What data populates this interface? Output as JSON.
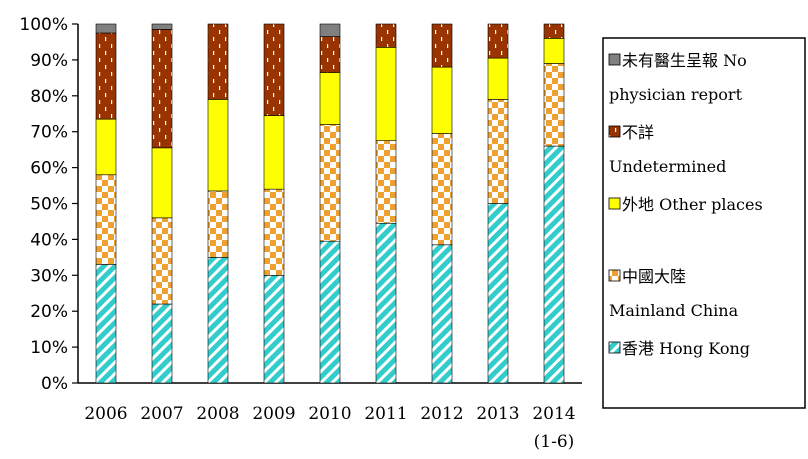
{
  "chart_data": {
    "type": "bar",
    "stacked": true,
    "percent": true,
    "categories": [
      "2006",
      "2007",
      "2008",
      "2009",
      "2010",
      "2011",
      "2012",
      "2013",
      "2014"
    ],
    "category_sublabels": [
      "",
      "",
      "",
      "",
      "",
      "",
      "",
      "",
      "(1-6)"
    ],
    "yticks": [
      "0%",
      "10%",
      "20%",
      "30%",
      "40%",
      "50%",
      "60%",
      "70%",
      "80%",
      "90%",
      "100%"
    ],
    "ylim": [
      0,
      100
    ],
    "grid": false,
    "legend_position": "right",
    "series": [
      {
        "name": "香港 Hong Kong",
        "name_lines": [
          "香港 Hong Kong"
        ],
        "color": "#33cccc",
        "pattern": "diagonal-stripes",
        "values": [
          33,
          22,
          35,
          30,
          39.5,
          44.5,
          38.5,
          50,
          66
        ]
      },
      {
        "name": "中國大陸 Mainland China",
        "name_lines": [
          "中國大陸",
          "Mainland China"
        ],
        "color": "#f0a030",
        "pattern": "checkerboard",
        "values": [
          25,
          24,
          18.5,
          24,
          32.5,
          23,
          31,
          29,
          23
        ]
      },
      {
        "name": "外地 Other places",
        "name_lines": [
          "外地 Other places"
        ],
        "color": "#ffff00",
        "pattern": "solid",
        "values": [
          15.5,
          19.5,
          25.5,
          20.5,
          14.5,
          26,
          18.5,
          11.5,
          7
        ]
      },
      {
        "name": "不詳 Undetermined",
        "name_lines": [
          "不詳",
          "Undetermined"
        ],
        "color": "#993300",
        "pattern": "dashes",
        "values": [
          24,
          33,
          21,
          25.5,
          10,
          6.5,
          12,
          9.5,
          4
        ]
      },
      {
        "name": "未有醫生呈報 No physician report",
        "name_lines": [
          "未有醫生呈報 No",
          "physician report"
        ],
        "color": "#808080",
        "pattern": "solid",
        "values": [
          2.5,
          1.5,
          0,
          0,
          3.5,
          0,
          0,
          0,
          0
        ]
      }
    ]
  }
}
